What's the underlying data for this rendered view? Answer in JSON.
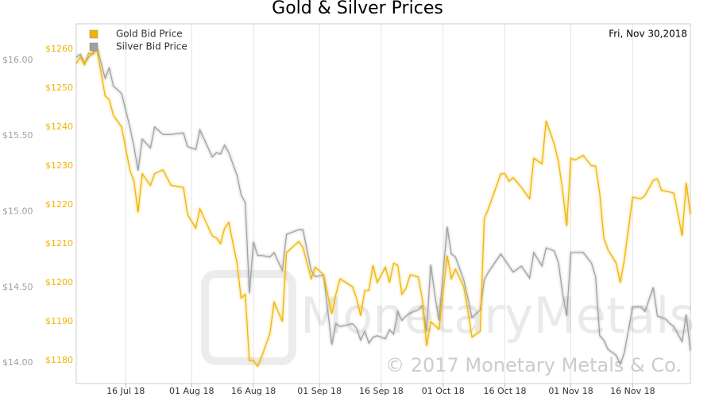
{
  "chart_data": {
    "type": "line",
    "title": "Gold & Silver Prices",
    "date_label": "Fri, Nov 30,2018",
    "watermark_logo": "MonetaryMetals",
    "watermark": "© 2017 Monetary Metals & Co.",
    "legend": "top-left",
    "grid": "x",
    "x": [
      "2018-07-04",
      "2018-07-05",
      "2018-07-06",
      "2018-07-07",
      "2018-07-08",
      "2018-07-09",
      "2018-07-11",
      "2018-07-12",
      "2018-07-13",
      "2018-07-15",
      "2018-07-17",
      "2018-07-18",
      "2018-07-19",
      "2018-07-20",
      "2018-07-22",
      "2018-07-23",
      "2018-07-25",
      "2018-07-27",
      "2018-07-30",
      "2018-07-31",
      "2018-08-02",
      "2018-08-03",
      "2018-08-06",
      "2018-08-07",
      "2018-08-08",
      "2018-08-09",
      "2018-08-10",
      "2018-08-12",
      "2018-08-13",
      "2018-08-14",
      "2018-08-15",
      "2018-08-16",
      "2018-08-17",
      "2018-08-18",
      "2018-08-20",
      "2018-08-21",
      "2018-08-23",
      "2018-08-24",
      "2018-08-27",
      "2018-08-28",
      "2018-08-30",
      "2018-08-31",
      "2018-09-02",
      "2018-09-04",
      "2018-09-05",
      "2018-09-06",
      "2018-09-09",
      "2018-09-10",
      "2018-09-11",
      "2018-09-12",
      "2018-09-13",
      "2018-09-14",
      "2018-09-15",
      "2018-09-17",
      "2018-09-18",
      "2018-09-19",
      "2018-09-20",
      "2018-09-21",
      "2018-09-22",
      "2018-09-23",
      "2018-09-25",
      "2018-09-26",
      "2018-09-27",
      "2018-09-28",
      "2018-09-29",
      "2018-09-30",
      "2018-10-02",
      "2018-10-03",
      "2018-10-04",
      "2018-10-06",
      "2018-10-07",
      "2018-10-08",
      "2018-10-10",
      "2018-10-11",
      "2018-10-12",
      "2018-10-15",
      "2018-10-16",
      "2018-10-17",
      "2018-10-18",
      "2018-10-20",
      "2018-10-22",
      "2018-10-23",
      "2018-10-25",
      "2018-10-26",
      "2018-10-28",
      "2018-10-29",
      "2018-10-30",
      "2018-10-31",
      "2018-11-01",
      "2018-11-02",
      "2018-11-04",
      "2018-11-06",
      "2018-11-07",
      "2018-11-08",
      "2018-11-09",
      "2018-11-10",
      "2018-11-12",
      "2018-11-13",
      "2018-11-14",
      "2018-11-16",
      "2018-11-18",
      "2018-11-19",
      "2018-11-21",
      "2018-11-22",
      "2018-11-23",
      "2018-11-24",
      "2018-11-25",
      "2018-11-26",
      "2018-11-28",
      "2018-11-29",
      "2018-11-30"
    ],
    "series": [
      {
        "name": "Gold Bid Price",
        "color": "#f0b400",
        "axis": "y2",
        "values": [
          1256.3,
          1258,
          1256,
          1259,
          1258.6,
          1260,
          1248,
          1247,
          1243,
          1240,
          1229,
          1226,
          1218,
          1228,
          1225,
          1228,
          1229,
          1225,
          1224.5,
          1217.5,
          1214,
          1219,
          1212,
          1211.5,
          1210,
          1214,
          1215.5,
          1205,
          1196,
          1197,
          1180,
          1180,
          1178.5,
          1181,
          1187,
          1195,
          1190,
          1207.7,
          1210.6,
          1209,
          1201,
          1204,
          1202,
          1192,
          1197,
          1201,
          1199,
          1196,
          1191.5,
          1198,
          1198,
          1204.5,
          1200,
          1204,
          1200,
          1205,
          1204.5,
          1197,
          1198.5,
          1202,
          1201.5,
          1195.5,
          1183.7,
          1190,
          1189,
          1188,
          1207,
          1201,
          1203.5,
          1199,
          1193,
          1186,
          1187.5,
          1216.5,
          1219,
          1228,
          1228,
          1226,
          1227,
          1224.5,
          1221.5,
          1232,
          1230.5,
          1241.6,
          1235.5,
          1231,
          1223.7,
          1214.5,
          1232,
          1231.5,
          1232.7,
          1230,
          1230,
          1223,
          1211.5,
          1208.5,
          1205,
          1200,
          1206,
          1222,
          1221.5,
          1222.4,
          1226.3,
          1226.7,
          1223.7,
          1223.5,
          1223.3,
          1223,
          1212,
          1225.7,
          1217.5
        ]
      },
      {
        "name": "Silver Bid Price",
        "color": "#a0a0a0",
        "axis": "y",
        "values": [
          16.02,
          16.04,
          15.98,
          16.02,
          16.05,
          16.09,
          15.88,
          15.95,
          15.83,
          15.78,
          15.56,
          15.43,
          15.27,
          15.48,
          15.42,
          15.56,
          15.51,
          15.51,
          15.52,
          15.43,
          15.41,
          15.54,
          15.36,
          15.39,
          15.38,
          15.44,
          15.39,
          15.24,
          15.11,
          15.06,
          14.46,
          14.8,
          14.71,
          14.71,
          14.7,
          14.73,
          14.61,
          14.85,
          14.88,
          14.88,
          14.61,
          14.57,
          14.58,
          14.12,
          14.26,
          14.24,
          14.26,
          14.23,
          14.15,
          14.21,
          14.13,
          14.17,
          14.18,
          14.16,
          14.22,
          14.19,
          14.34,
          14.28,
          14.31,
          14.33,
          14.35,
          14.38,
          14.21,
          14.65,
          14.45,
          14.28,
          14.9,
          14.72,
          14.7,
          14.55,
          14.43,
          14.3,
          14.35,
          14.55,
          14.6,
          14.72,
          14.68,
          14.64,
          14.6,
          14.64,
          14.56,
          14.73,
          14.64,
          14.76,
          14.74,
          14.66,
          14.46,
          14.31,
          14.73,
          14.73,
          14.73,
          14.66,
          14.57,
          14.18,
          14.15,
          14.09,
          14.05,
          13.99,
          14.07,
          14.37,
          14.37,
          14.34,
          14.5,
          14.31,
          14.3,
          14.29,
          14.26,
          14.24,
          14.14,
          14.32,
          14.08
        ]
      }
    ],
    "xlim": [
      "2018-07-04",
      "2018-11-30"
    ],
    "xticks": [
      {
        "value": "2018-07-16",
        "label": "16 Jul 18"
      },
      {
        "value": "2018-08-01",
        "label": "01 Aug 18"
      },
      {
        "value": "2018-08-16",
        "label": "16 Aug 18"
      },
      {
        "value": "2018-09-01",
        "label": "01 Sep 18"
      },
      {
        "value": "2018-09-16",
        "label": "16 Sep 18"
      },
      {
        "value": "2018-10-01",
        "label": "01 Oct 18"
      },
      {
        "value": "2018-10-16",
        "label": "16 Oct 18"
      },
      {
        "value": "2018-11-01",
        "label": "01 Nov 18"
      },
      {
        "value": "2018-11-16",
        "label": "16 Nov 18"
      }
    ],
    "ylim": [
      13.864,
      16.241
    ],
    "yticks": [
      {
        "value": 14,
        "label": "$14.00"
      },
      {
        "value": 14.5,
        "label": "$14.50"
      },
      {
        "value": 15,
        "label": "$15.00"
      },
      {
        "value": 15.5,
        "label": "$15.50"
      },
      {
        "value": 16,
        "label": "$16.00"
      }
    ],
    "y2lim": [
      1174.1,
      1266.5
    ],
    "y2ticks": [
      {
        "value": 1180,
        "label": "$1180"
      },
      {
        "value": 1190,
        "label": "$1190"
      },
      {
        "value": 1200,
        "label": "$1200"
      },
      {
        "value": 1210,
        "label": "$1210"
      },
      {
        "value": 1220,
        "label": "$1220"
      },
      {
        "value": 1230,
        "label": "$1230"
      },
      {
        "value": 1240,
        "label": "$1240"
      },
      {
        "value": 1250,
        "label": "$1250"
      },
      {
        "value": 1260,
        "label": "$1260"
      }
    ]
  }
}
